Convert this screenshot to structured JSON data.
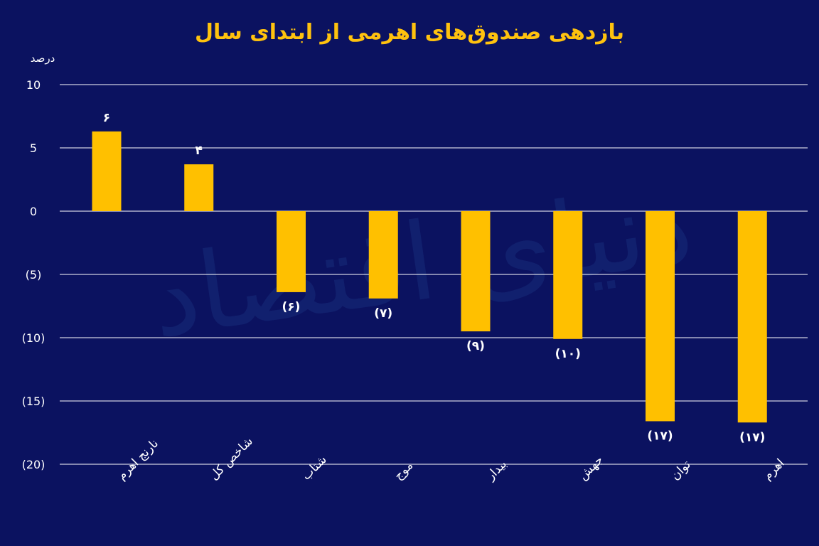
{
  "colors": {
    "background": "#0b1260",
    "title": "#ffc20e",
    "bar": "#ffc000",
    "text": "#ffffff",
    "grid": "#ffffff"
  },
  "chart_data": {
    "type": "bar",
    "title": "بازدهی صندوق‌های اهرمی از ابتدای سال",
    "ylabel": "درصد",
    "xlabel": "",
    "ylim": [
      -20,
      10
    ],
    "yticks": [
      10,
      5,
      0,
      -5,
      -10,
      -15,
      -20
    ],
    "ytick_labels": [
      "10",
      "5",
      "0",
      "(5)",
      "(10)",
      "(15)",
      "(20)"
    ],
    "categories": [
      "نارنج اهرم",
      "شاخص کل",
      "شتاب",
      "موج",
      "بیدار",
      "جهش",
      "توان",
      "اهرم"
    ],
    "values": [
      6.3,
      3.7,
      -6.4,
      -6.9,
      -9.5,
      -10.1,
      -16.6,
      -16.7
    ],
    "data_labels": [
      "۶",
      "۴",
      "(۶)",
      "(۷)",
      "(۹)",
      "(۱۰)",
      "(۱۷)",
      "(۱۷)"
    ],
    "grid": true,
    "watermark": "دنیای اقتصاد"
  }
}
